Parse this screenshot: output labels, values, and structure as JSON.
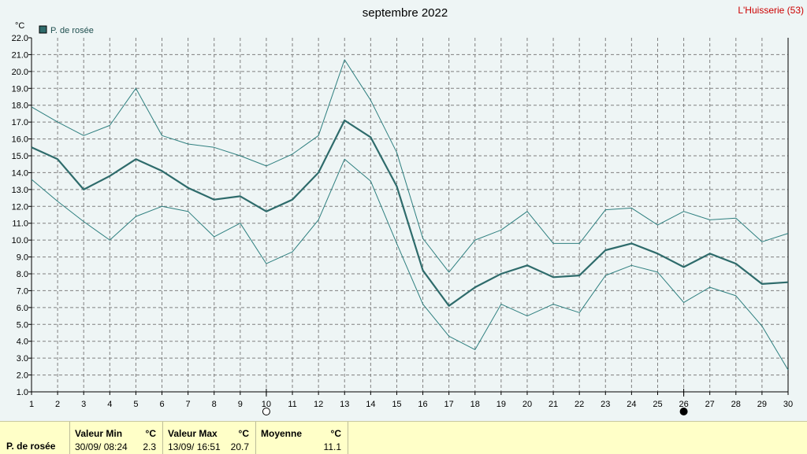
{
  "header": {
    "title": "septembre 2022",
    "station": "L'Huisserie (53)"
  },
  "legend": {
    "label": "P. de rosée",
    "color": "#2e6b6b"
  },
  "chart_data": {
    "type": "line",
    "title": "septembre 2022",
    "ylabel": "°C",
    "xlabel": "",
    "ylim": [
      1.0,
      22.0
    ],
    "ytick_step": 1.0,
    "x": [
      1,
      2,
      3,
      4,
      5,
      6,
      7,
      8,
      9,
      10,
      11,
      12,
      13,
      14,
      15,
      16,
      17,
      18,
      19,
      20,
      21,
      22,
      23,
      24,
      25,
      26,
      27,
      28,
      29,
      30
    ],
    "grid": true,
    "legend_position": "top-left",
    "series": [
      {
        "name": "P. de rosée",
        "role": "mean",
        "color": "#2e6b6b",
        "values": [
          15.5,
          14.8,
          13.0,
          13.8,
          14.8,
          14.1,
          13.1,
          12.4,
          12.6,
          11.7,
          12.4,
          14.0,
          17.1,
          16.1,
          13.2,
          8.2,
          6.1,
          7.2,
          8.0,
          8.5,
          7.8,
          7.9,
          9.4,
          9.8,
          9.2,
          8.4,
          9.2,
          8.6,
          7.4,
          7.5
        ]
      },
      {
        "role": "max",
        "color": "#2e7f7f",
        "values": [
          17.9,
          17.0,
          16.2,
          16.8,
          19.0,
          16.2,
          15.7,
          15.5,
          15.0,
          14.4,
          15.1,
          16.2,
          20.7,
          18.3,
          15.2,
          10.1,
          8.1,
          10.0,
          10.6,
          11.7,
          9.8,
          9.8,
          11.8,
          11.9,
          10.9,
          11.7,
          11.2,
          11.3,
          9.9,
          10.4
        ]
      },
      {
        "role": "min",
        "color": "#2e7f7f",
        "values": [
          13.6,
          12.3,
          11.1,
          10.0,
          11.4,
          12.0,
          11.7,
          10.2,
          11.0,
          8.6,
          9.3,
          11.2,
          14.8,
          13.5,
          9.8,
          6.2,
          4.3,
          3.5,
          6.2,
          5.5,
          6.2,
          5.7,
          7.9,
          8.5,
          8.1,
          6.3,
          7.2,
          6.7,
          4.9,
          2.3
        ]
      }
    ],
    "moon_phases": [
      {
        "day": 10,
        "phase": "full-moon"
      },
      {
        "day": 26,
        "phase": "new-moon"
      }
    ]
  },
  "stats": {
    "row_label": "P. de rosée",
    "min": {
      "header": "Valeur Min",
      "unit": "°C",
      "date": "30/09/  08:24",
      "value": "2.3"
    },
    "max": {
      "header": "Valeur Max",
      "unit": "°C",
      "date": "13/09/  16:51",
      "value": "20.7"
    },
    "avg": {
      "header": "Moyenne",
      "unit": "°C",
      "value": "11.1"
    }
  }
}
